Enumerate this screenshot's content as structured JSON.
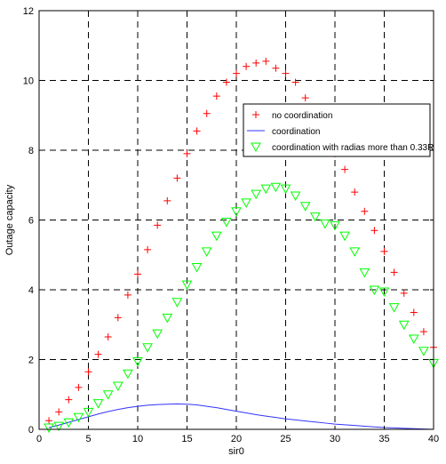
{
  "chart_data": {
    "type": "scatter",
    "xlabel": "sir0",
    "ylabel": "Outage capacity",
    "xlim": [
      0,
      40
    ],
    "ylim": [
      0,
      12
    ],
    "xticks": [
      0,
      5,
      10,
      15,
      20,
      25,
      30,
      35,
      40
    ],
    "yticks": [
      0,
      2,
      4,
      6,
      8,
      10,
      12
    ],
    "grid": true,
    "grid_style": "dashed",
    "legend_position": "upper-right",
    "series": [
      {
        "name": "no coordination",
        "marker": "plus",
        "color": "#ff0000",
        "x": [
          1,
          2,
          3,
          4,
          5,
          6,
          7,
          8,
          9,
          10,
          11,
          12,
          13,
          14,
          15,
          16,
          17,
          18,
          19,
          20,
          21,
          22,
          23,
          24,
          25,
          26,
          27,
          28,
          29,
          30,
          31,
          32,
          33,
          34,
          35,
          36,
          37,
          38,
          39,
          40
        ],
        "y": [
          0.25,
          0.5,
          0.85,
          1.2,
          1.65,
          2.15,
          2.65,
          3.2,
          3.85,
          4.45,
          5.15,
          5.85,
          6.55,
          7.2,
          7.9,
          8.55,
          9.05,
          9.55,
          9.95,
          10.2,
          10.4,
          10.5,
          10.55,
          10.35,
          10.2,
          9.95,
          9.5,
          9.0,
          8.3,
          7.9,
          7.45,
          6.8,
          6.25,
          5.7,
          5.1,
          4.5,
          3.9,
          3.35,
          2.8,
          2.35
        ]
      },
      {
        "name": "coordination",
        "marker": "line",
        "color": "#3333ff",
        "x": [
          1,
          2,
          3,
          4,
          5,
          6,
          7,
          8,
          9,
          10,
          11,
          12,
          13,
          14,
          15,
          16,
          17,
          18,
          19,
          20,
          21,
          22,
          23,
          24,
          25,
          26,
          27,
          28,
          29,
          30,
          31,
          32,
          33,
          34,
          35,
          36,
          37,
          38,
          39,
          40
        ],
        "y": [
          0.05,
          0.12,
          0.2,
          0.28,
          0.36,
          0.44,
          0.51,
          0.57,
          0.62,
          0.66,
          0.69,
          0.71,
          0.72,
          0.73,
          0.72,
          0.7,
          0.66,
          0.62,
          0.57,
          0.52,
          0.47,
          0.42,
          0.38,
          0.34,
          0.3,
          0.27,
          0.24,
          0.21,
          0.18,
          0.15,
          0.13,
          0.11,
          0.09,
          0.07,
          0.05,
          0.04,
          0.03,
          0.02,
          0.01,
          0.0
        ]
      },
      {
        "name": "coordination with radias more than 0.33R",
        "marker": "triangle-down",
        "color": "#00ff00",
        "x": [
          1,
          2,
          3,
          4,
          5,
          6,
          7,
          8,
          9,
          10,
          11,
          12,
          13,
          14,
          15,
          16,
          17,
          18,
          19,
          20,
          21,
          22,
          23,
          24,
          25,
          26,
          27,
          28,
          29,
          30,
          31,
          32,
          33,
          34,
          35,
          36,
          37,
          38,
          39,
          40
        ],
        "y": [
          0.05,
          0.1,
          0.2,
          0.35,
          0.5,
          0.75,
          1.0,
          1.25,
          1.6,
          1.95,
          2.35,
          2.75,
          3.2,
          3.65,
          4.15,
          4.65,
          5.1,
          5.55,
          5.95,
          6.25,
          6.5,
          6.75,
          6.9,
          6.95,
          6.9,
          6.7,
          6.4,
          6.1,
          5.9,
          5.85,
          5.55,
          5.1,
          4.5,
          4.0,
          3.95,
          3.5,
          3.0,
          2.6,
          2.25,
          1.9
        ]
      }
    ]
  }
}
